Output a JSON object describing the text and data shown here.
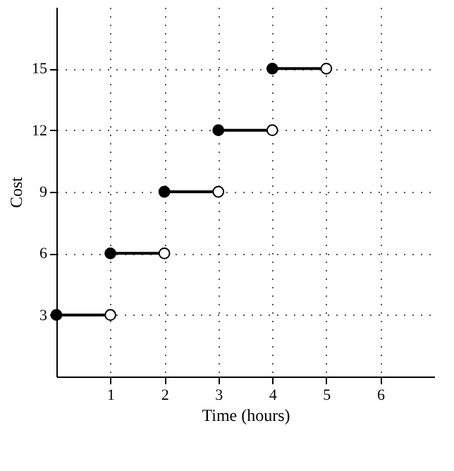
{
  "chart_data": {
    "type": "scatter",
    "xlabel": "Time (hours)",
    "ylabel": "Cost",
    "xlim": [
      0,
      7
    ],
    "ylim": [
      0,
      18
    ],
    "xticks": [
      1,
      2,
      3,
      4,
      5,
      6
    ],
    "yticks": [
      3,
      6,
      9,
      12,
      15
    ],
    "grid": true,
    "line_style": "solid",
    "series": [
      {
        "type": "line",
        "marker": "none",
        "color": "#000000",
        "x": [
          0,
          1
        ],
        "values": [
          3,
          3
        ]
      },
      {
        "type": "line",
        "marker": "none",
        "color": "#000000",
        "x": [
          1,
          2
        ],
        "values": [
          6,
          6
        ]
      },
      {
        "type": "line",
        "marker": "none",
        "color": "#000000",
        "x": [
          2,
          3
        ],
        "values": [
          9,
          9
        ]
      },
      {
        "type": "line",
        "marker": "none",
        "color": "#000000",
        "x": [
          3,
          4
        ],
        "values": [
          12,
          12
        ]
      },
      {
        "type": "line",
        "marker": "none",
        "color": "#000000",
        "x": [
          4,
          5
        ],
        "values": [
          15,
          15
        ]
      },
      {
        "marker": "circle",
        "color": "#000000",
        "x": [
          0,
          1,
          2,
          3,
          4
        ],
        "values": [
          3,
          6,
          9,
          12,
          15
        ]
      },
      {
        "marker": "circle",
        "color": "#ffffff",
        "x": [
          1,
          2,
          3,
          4,
          5
        ],
        "values": [
          3,
          6,
          9,
          12,
          15
        ]
      }
    ]
  }
}
